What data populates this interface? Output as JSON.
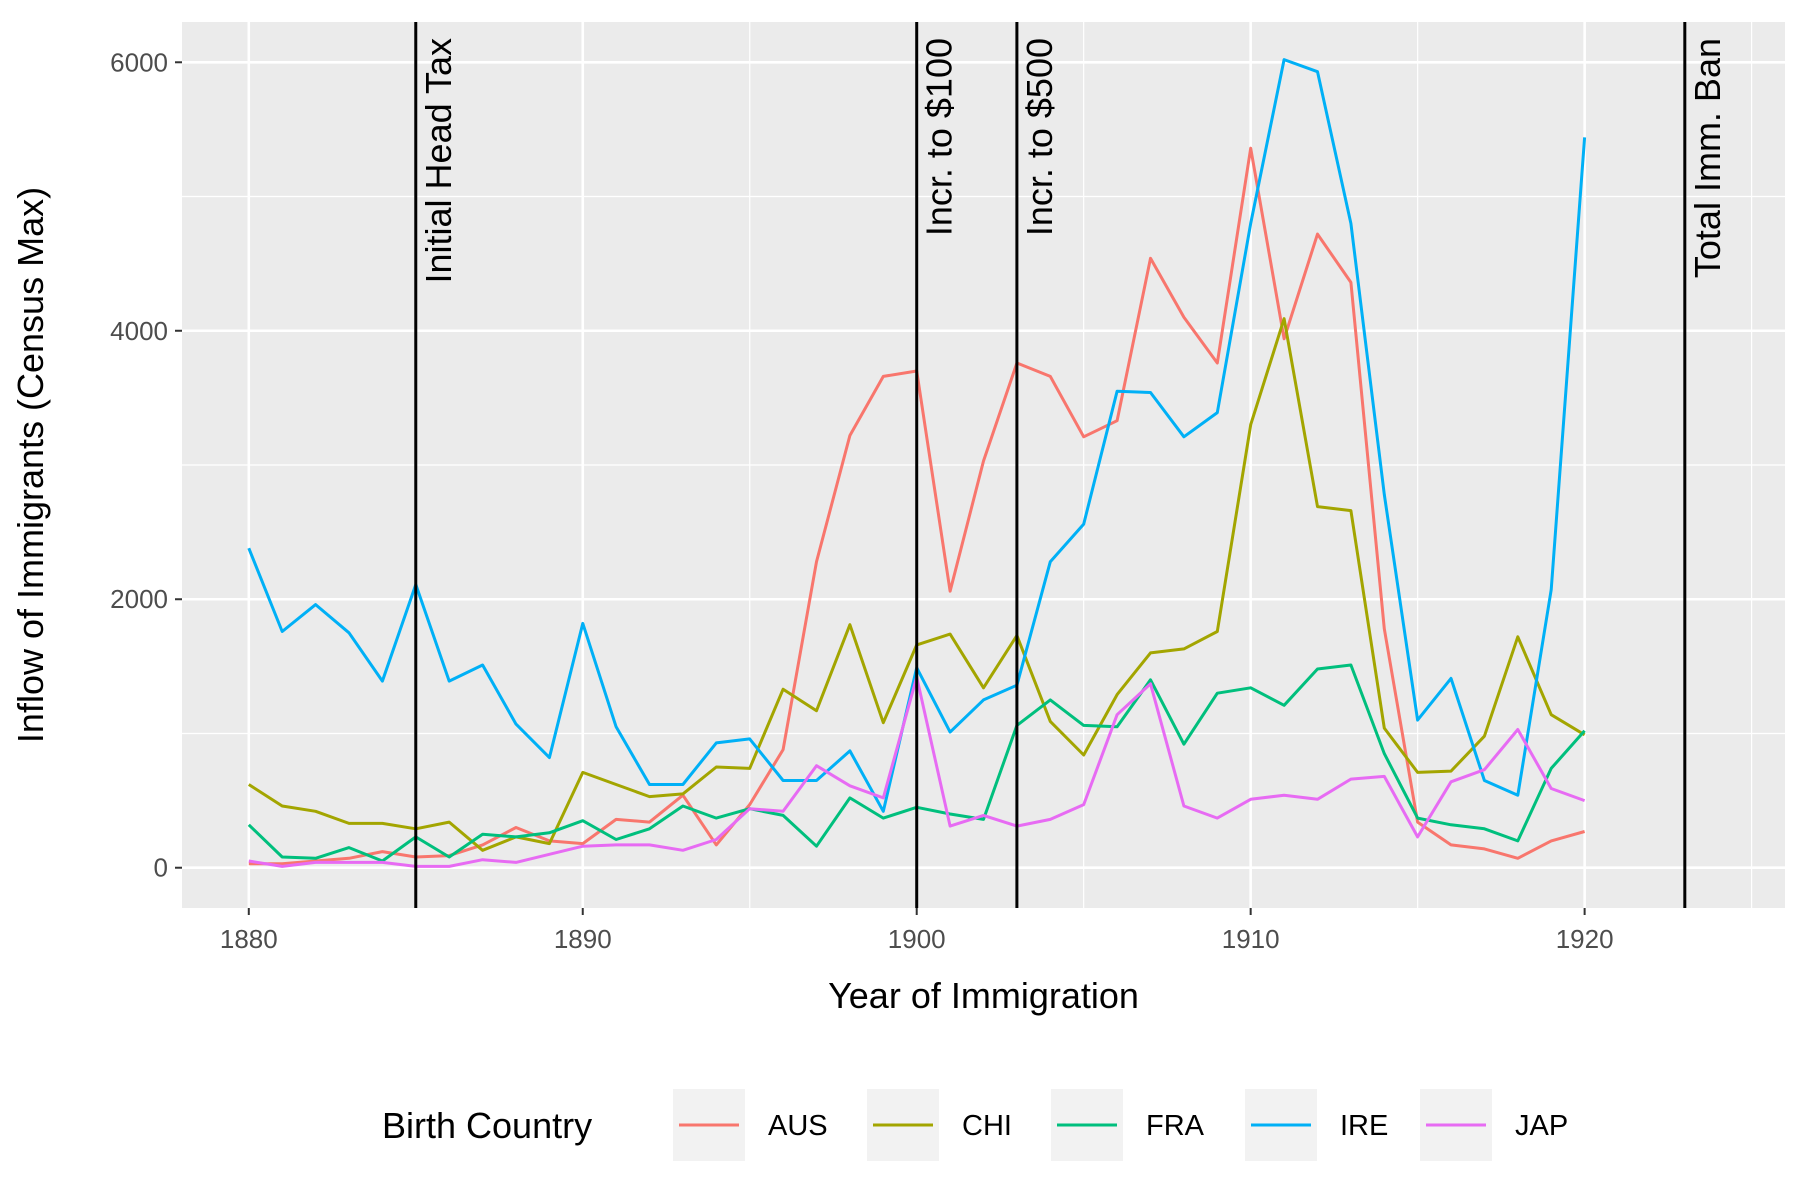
{
  "chart_data": {
    "type": "line",
    "xlabel": "Year of Immigration",
    "ylabel": "Inflow of Immigrants (Census Max)",
    "xlim": [
      1878,
      1926
    ],
    "ylim": [
      -300,
      6300
    ],
    "x_ticks": [
      1880,
      1890,
      1900,
      1910,
      1920
    ],
    "y_ticks": [
      0,
      2000,
      4000,
      6000
    ],
    "grid": true,
    "legend": {
      "title": "Birth Country",
      "position": "bottom"
    },
    "x": [
      1880,
      1881,
      1882,
      1883,
      1884,
      1885,
      1886,
      1887,
      1888,
      1889,
      1890,
      1891,
      1892,
      1893,
      1894,
      1895,
      1896,
      1897,
      1898,
      1899,
      1900,
      1901,
      1902,
      1903,
      1904,
      1905,
      1906,
      1907,
      1908,
      1909,
      1910,
      1911,
      1912,
      1913,
      1914,
      1915,
      1916,
      1917,
      1918,
      1919,
      1920
    ],
    "series": [
      {
        "name": "AUS",
        "color": "#F8766D",
        "values": [
          30,
          30,
          50,
          70,
          120,
          80,
          90,
          170,
          300,
          200,
          180,
          360,
          340,
          540,
          170,
          470,
          880,
          2280,
          3220,
          3660,
          3700,
          2060,
          3030,
          3760,
          3660,
          3210,
          3330,
          4540,
          4100,
          3760,
          5360,
          3940,
          4720,
          4360,
          1780,
          340,
          170,
          140,
          70,
          200,
          270
        ]
      },
      {
        "name": "CHI",
        "color": "#A3A500",
        "values": [
          620,
          460,
          420,
          330,
          330,
          290,
          340,
          130,
          230,
          180,
          710,
          620,
          530,
          550,
          750,
          740,
          1330,
          1170,
          1810,
          1080,
          1660,
          1740,
          1340,
          1730,
          1090,
          840,
          1290,
          1600,
          1630,
          1760,
          3300,
          4090,
          2690,
          2660,
          1040,
          710,
          720,
          980,
          1720,
          1140,
          990
        ]
      },
      {
        "name": "FRA",
        "color": "#00BF7D",
        "values": [
          320,
          80,
          70,
          150,
          50,
          230,
          80,
          250,
          230,
          260,
          350,
          210,
          290,
          460,
          370,
          440,
          390,
          160,
          520,
          370,
          450,
          400,
          360,
          1060,
          1250,
          1060,
          1050,
          1400,
          920,
          1300,
          1340,
          1210,
          1480,
          1510,
          850,
          370,
          320,
          290,
          200,
          740,
          1020
        ]
      },
      {
        "name": "IRE",
        "color": "#00B0F6",
        "values": [
          2380,
          1760,
          1960,
          1750,
          1390,
          2110,
          1390,
          1510,
          1070,
          820,
          1820,
          1050,
          620,
          620,
          930,
          960,
          650,
          650,
          870,
          420,
          1490,
          1010,
          1250,
          1360,
          2280,
          2560,
          3550,
          3540,
          3210,
          3390,
          4800,
          6020,
          5930,
          4800,
          2780,
          1100,
          1410,
          650,
          540,
          2070,
          5440
        ]
      },
      {
        "name": "JAP",
        "color": "#E76BF3",
        "values": [
          50,
          10,
          40,
          40,
          40,
          10,
          10,
          60,
          40,
          100,
          160,
          170,
          170,
          130,
          210,
          440,
          420,
          760,
          610,
          520,
          1420,
          310,
          390,
          310,
          360,
          470,
          1140,
          1370,
          460,
          370,
          510,
          540,
          510,
          660,
          680,
          230,
          640,
          730,
          1030,
          590,
          500
        ]
      }
    ],
    "annotations": [
      {
        "x": 1885,
        "label": "Initial Head Tax"
      },
      {
        "x": 1900,
        "label": "Incr. to $100"
      },
      {
        "x": 1903,
        "label": "Incr. to $500"
      },
      {
        "x": 1923,
        "label": "Total Imm. Ban"
      }
    ]
  }
}
